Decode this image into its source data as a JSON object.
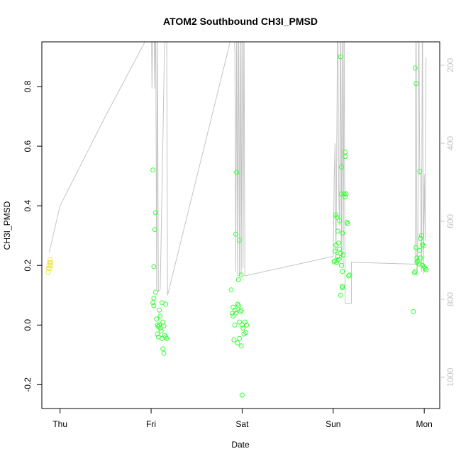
{
  "chart_data": {
    "type": "scatter",
    "title": "ATOM2 Southbound CH3I_PMSD",
    "xlabel": "Date",
    "ylabel": "CH3I_PMSD",
    "x_ticks": [
      {
        "label": "Thu",
        "day": 0
      },
      {
        "label": "Fri",
        "day": 1
      },
      {
        "label": "Sat",
        "day": 2
      },
      {
        "label": "Sun",
        "day": 3
      },
      {
        "label": "Mon",
        "day": 4
      }
    ],
    "xlim_days": [
      -0.2,
      4.17
    ],
    "ylim": [
      -0.28,
      0.95
    ],
    "y_ticks": [
      -0.2,
      0.0,
      0.2,
      0.4,
      0.6,
      0.8
    ],
    "y2_ticks": [
      200,
      400,
      600,
      800,
      1000
    ],
    "y2lim": [
      1080,
      140
    ],
    "grid": false,
    "legend": "none",
    "colors": {
      "points_main": "#33ff33",
      "points_early": "#e8e84a",
      "altitude_line": "#c4c4c4"
    },
    "series": [
      {
        "values": [
          [
            -0.13,
            0.177
          ],
          [
            -0.125,
            0.19
          ],
          [
            -0.12,
            0.2
          ],
          [
            -0.115,
            0.21
          ],
          [
            -0.11,
            0.22
          ],
          [
            -0.105,
            0.21
          ],
          [
            -0.1,
            0.2
          ],
          [
            -0.11,
            0.19
          ]
        ],
        "style": "early"
      },
      {
        "values": [
          [
            1.02,
            0.52
          ],
          [
            1.03,
            0.196
          ],
          [
            1.05,
            0.377
          ],
          [
            1.04,
            0.32
          ],
          [
            1.05,
            0.11
          ],
          [
            1.02,
            0.075
          ],
          [
            1.03,
            0.09
          ],
          [
            1.03,
            0.065
          ],
          [
            1.06,
            0.02
          ],
          [
            1.07,
            0.0
          ],
          [
            1.08,
            -0.005
          ],
          [
            1.09,
            0.0
          ],
          [
            1.1,
            -0.01
          ],
          [
            1.11,
            -0.02
          ],
          [
            1.07,
            -0.03
          ],
          [
            1.08,
            -0.04
          ],
          [
            1.12,
            -0.045
          ],
          [
            1.13,
            0.01
          ],
          [
            1.14,
            -0.003
          ],
          [
            1.15,
            -0.035
          ],
          [
            1.16,
            -0.04
          ],
          [
            1.17,
            -0.045
          ],
          [
            1.13,
            -0.08
          ],
          [
            1.14,
            -0.095
          ],
          [
            1.12,
            0.075
          ],
          [
            1.16,
            0.07
          ],
          [
            1.09,
            0.05
          ],
          [
            1.1,
            0.03
          ],
          [
            1.88,
            0.118
          ],
          [
            1.9,
            0.06
          ],
          [
            1.92,
            0.05
          ],
          [
            1.93,
            0.04
          ],
          [
            1.95,
            0.07
          ],
          [
            1.96,
            0.065
          ],
          [
            1.97,
            0.01
          ],
          [
            1.98,
            0.045
          ],
          [
            1.99,
            0.05
          ],
          [
            2.0,
            0.0
          ],
          [
            2.01,
            -0.01
          ],
          [
            2.02,
            -0.03
          ],
          [
            2.03,
            0.01
          ],
          [
            2.04,
            -0.025
          ],
          [
            2.05,
            0.0
          ],
          [
            1.9,
            0.03
          ],
          [
            1.92,
            0.0
          ],
          [
            1.91,
            -0.05
          ],
          [
            1.95,
            -0.06
          ],
          [
            1.97,
            -0.045
          ],
          [
            1.99,
            -0.07
          ],
          [
            2.0,
            -0.235
          ],
          [
            1.93,
            0.305
          ],
          [
            1.94,
            0.512
          ],
          [
            1.97,
            0.285
          ],
          [
            1.96,
            0.152
          ],
          [
            1.99,
            0.168
          ],
          [
            1.89,
            0.04
          ],
          [
            3.01,
            0.212
          ],
          [
            3.02,
            0.215
          ],
          [
            3.02,
            0.248
          ],
          [
            3.03,
            0.268
          ],
          [
            3.03,
            0.37
          ],
          [
            3.04,
            0.362
          ],
          [
            3.05,
            0.315
          ],
          [
            3.06,
            0.275
          ],
          [
            3.07,
            0.35
          ],
          [
            3.07,
            0.255
          ],
          [
            3.08,
            0.24
          ],
          [
            3.06,
            0.22
          ],
          [
            3.09,
            0.2
          ],
          [
            3.1,
            0.18
          ],
          [
            3.08,
            0.1
          ],
          [
            3.1,
            0.13
          ],
          [
            3.1,
            0.125
          ],
          [
            3.11,
            0.235
          ],
          [
            3.12,
            0.44
          ],
          [
            3.13,
            0.43
          ],
          [
            3.13,
            0.58
          ],
          [
            3.13,
            0.565
          ],
          [
            3.14,
            0.44
          ],
          [
            3.15,
            0.345
          ],
          [
            3.16,
            0.34
          ],
          [
            3.17,
            0.165
          ],
          [
            3.18,
            0.168
          ],
          [
            3.09,
            0.53
          ],
          [
            3.09,
            0.44
          ],
          [
            3.1,
            0.308
          ],
          [
            3.08,
            0.9
          ],
          [
            3.05,
            0.23
          ],
          [
            3.04,
            0.21
          ],
          [
            3.88,
            0.045
          ],
          [
            3.89,
            0.175
          ],
          [
            3.9,
            0.18
          ],
          [
            3.91,
            0.26
          ],
          [
            3.92,
            0.225
          ],
          [
            3.93,
            0.215
          ],
          [
            3.94,
            0.205
          ],
          [
            3.95,
            0.25
          ],
          [
            3.96,
            0.29
          ],
          [
            3.97,
            0.3
          ],
          [
            3.98,
            0.27
          ],
          [
            3.99,
            0.265
          ],
          [
            4.0,
            0.195
          ],
          [
            4.01,
            0.19
          ],
          [
            4.02,
            0.185
          ],
          [
            3.96,
            0.225
          ],
          [
            3.98,
            0.2
          ],
          [
            3.92,
            0.21
          ],
          [
            3.9,
            0.862
          ],
          [
            3.91,
            0.81
          ],
          [
            3.95,
            0.515
          ]
        ],
        "style": "main"
      }
    ],
    "altitude_trace": [
      [
        -0.12,
        680
      ],
      [
        0.0,
        560
      ],
      [
        0.5,
        330
      ],
      [
        1.0,
        110
      ],
      [
        1.0,
        20
      ],
      [
        1.01,
        260
      ],
      [
        1.02,
        30
      ],
      [
        1.03,
        20
      ],
      [
        1.04,
        260
      ],
      [
        1.05,
        30
      ],
      [
        1.06,
        775
      ],
      [
        1.07,
        120
      ],
      [
        1.08,
        780
      ],
      [
        1.1,
        775
      ],
      [
        1.15,
        120
      ],
      [
        1.16,
        110
      ],
      [
        1.17,
        20
      ],
      [
        1.18,
        790
      ],
      [
        1.9,
        110
      ],
      [
        1.91,
        80
      ],
      [
        1.92,
        170
      ],
      [
        1.93,
        730
      ],
      [
        1.94,
        80
      ],
      [
        1.95,
        740
      ],
      [
        1.96,
        20
      ],
      [
        1.97,
        740
      ],
      [
        1.98,
        20
      ],
      [
        1.99,
        740
      ],
      [
        2.0,
        20
      ],
      [
        2.01,
        720
      ],
      [
        2.02,
        40
      ],
      [
        2.03,
        740
      ],
      [
        3.0,
        690
      ],
      [
        3.01,
        500
      ],
      [
        3.02,
        400
      ],
      [
        3.03,
        700
      ],
      [
        3.04,
        390
      ],
      [
        3.05,
        20
      ],
      [
        3.06,
        520
      ],
      [
        3.07,
        610
      ],
      [
        3.08,
        20
      ],
      [
        3.09,
        700
      ],
      [
        3.1,
        20
      ],
      [
        3.11,
        720
      ],
      [
        3.12,
        20
      ],
      [
        3.13,
        810
      ],
      [
        3.14,
        810
      ],
      [
        3.2,
        810
      ],
      [
        3.2,
        705
      ],
      [
        3.9,
        710
      ],
      [
        3.91,
        20
      ],
      [
        3.92,
        740
      ],
      [
        3.93,
        680
      ],
      [
        3.94,
        20
      ],
      [
        3.95,
        480
      ],
      [
        3.96,
        480
      ],
      [
        3.97,
        730
      ],
      [
        3.98,
        20
      ],
      [
        3.99,
        735
      ],
      [
        4.0,
        480
      ],
      [
        4.01,
        650
      ],
      [
        4.02,
        180
      ]
    ]
  }
}
